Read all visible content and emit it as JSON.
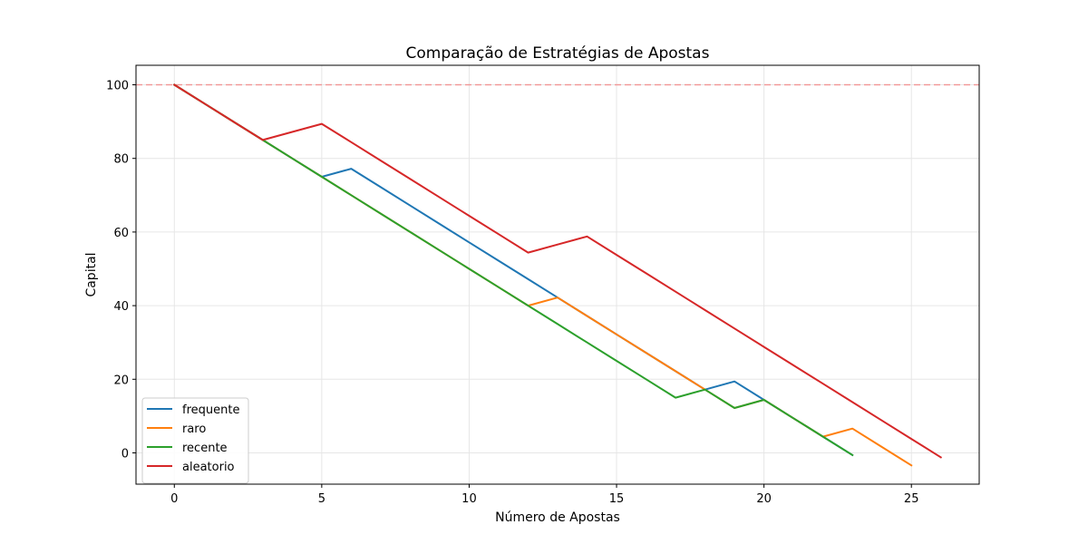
{
  "chart_data": {
    "type": "line",
    "title": "Comparação de Estratégias de Apostas",
    "xlabel": "Número de Apostas",
    "ylabel": "Capital",
    "xlim": [
      -1.3,
      27.3
    ],
    "ylim": [
      -8.5,
      105.3
    ],
    "xticks": [
      0,
      5,
      10,
      15,
      20,
      25
    ],
    "yticks": [
      0,
      20,
      40,
      60,
      80,
      100
    ],
    "grid": true,
    "legend_position": "lower-left",
    "reference_line": {
      "y": 100,
      "color": "#ff0000",
      "style": "dashed"
    },
    "series": [
      {
        "name": "frequente",
        "color": "#1f77b4",
        "points": [
          [
            0,
            100
          ],
          [
            1,
            95
          ],
          [
            2,
            90
          ],
          [
            3,
            85
          ],
          [
            4,
            80
          ],
          [
            5,
            75
          ],
          [
            6,
            77.2
          ],
          [
            7,
            72.2
          ],
          [
            8,
            67.2
          ],
          [
            9,
            62.2
          ],
          [
            10,
            57.2
          ],
          [
            11,
            52.2
          ],
          [
            12,
            47.2
          ],
          [
            13,
            42.2
          ],
          [
            14,
            37.2
          ],
          [
            15,
            32.2
          ],
          [
            16,
            27.2
          ],
          [
            17,
            22.2
          ],
          [
            18,
            17.2
          ],
          [
            19,
            19.4
          ],
          [
            20,
            14.4
          ],
          [
            21,
            9.4
          ],
          [
            22,
            4.4
          ],
          [
            23,
            -0.6
          ]
        ]
      },
      {
        "name": "raro",
        "color": "#ff7f0e",
        "points": [
          [
            0,
            100
          ],
          [
            1,
            95
          ],
          [
            2,
            90
          ],
          [
            3,
            85
          ],
          [
            4,
            80
          ],
          [
            5,
            75
          ],
          [
            6,
            70
          ],
          [
            7,
            65
          ],
          [
            8,
            60
          ],
          [
            9,
            55
          ],
          [
            10,
            50
          ],
          [
            11,
            45
          ],
          [
            12,
            40
          ],
          [
            13,
            42.2
          ],
          [
            14,
            37.2
          ],
          [
            15,
            32.2
          ],
          [
            16,
            27.2
          ],
          [
            17,
            22.2
          ],
          [
            18,
            17.2
          ],
          [
            19,
            12.2
          ],
          [
            20,
            14.4
          ],
          [
            21,
            9.4
          ],
          [
            22,
            4.4
          ],
          [
            23,
            6.6
          ],
          [
            24,
            1.6
          ],
          [
            25,
            -3.4
          ]
        ]
      },
      {
        "name": "recente",
        "color": "#2ca02c",
        "points": [
          [
            0,
            100
          ],
          [
            1,
            95
          ],
          [
            2,
            90
          ],
          [
            3,
            85
          ],
          [
            4,
            80
          ],
          [
            5,
            75
          ],
          [
            6,
            70
          ],
          [
            7,
            65
          ],
          [
            8,
            60
          ],
          [
            9,
            55
          ],
          [
            10,
            50
          ],
          [
            11,
            45
          ],
          [
            12,
            40
          ],
          [
            13,
            35
          ],
          [
            14,
            30
          ],
          [
            15,
            25
          ],
          [
            16,
            20
          ],
          [
            17,
            15
          ],
          [
            18,
            17.2
          ],
          [
            19,
            12.2
          ],
          [
            20,
            14.4
          ],
          [
            21,
            9.4
          ],
          [
            22,
            4.4
          ],
          [
            23,
            -0.6
          ]
        ]
      },
      {
        "name": "aleatorio",
        "color": "#d62728",
        "points": [
          [
            0,
            100
          ],
          [
            1,
            95
          ],
          [
            2,
            90
          ],
          [
            3,
            85
          ],
          [
            4,
            87.2
          ],
          [
            5,
            89.4
          ],
          [
            6,
            84.4
          ],
          [
            7,
            79.4
          ],
          [
            8,
            74.4
          ],
          [
            9,
            69.4
          ],
          [
            10,
            64.4
          ],
          [
            11,
            59.4
          ],
          [
            12,
            54.4
          ],
          [
            13,
            56.6
          ],
          [
            14,
            58.8
          ],
          [
            15,
            53.8
          ],
          [
            16,
            48.8
          ],
          [
            17,
            43.8
          ],
          [
            18,
            38.8
          ],
          [
            19,
            33.8
          ],
          [
            20,
            28.8
          ],
          [
            21,
            23.8
          ],
          [
            22,
            18.8
          ],
          [
            23,
            13.8
          ],
          [
            24,
            8.8
          ],
          [
            25,
            3.8
          ],
          [
            26,
            -1.2
          ]
        ]
      }
    ]
  }
}
